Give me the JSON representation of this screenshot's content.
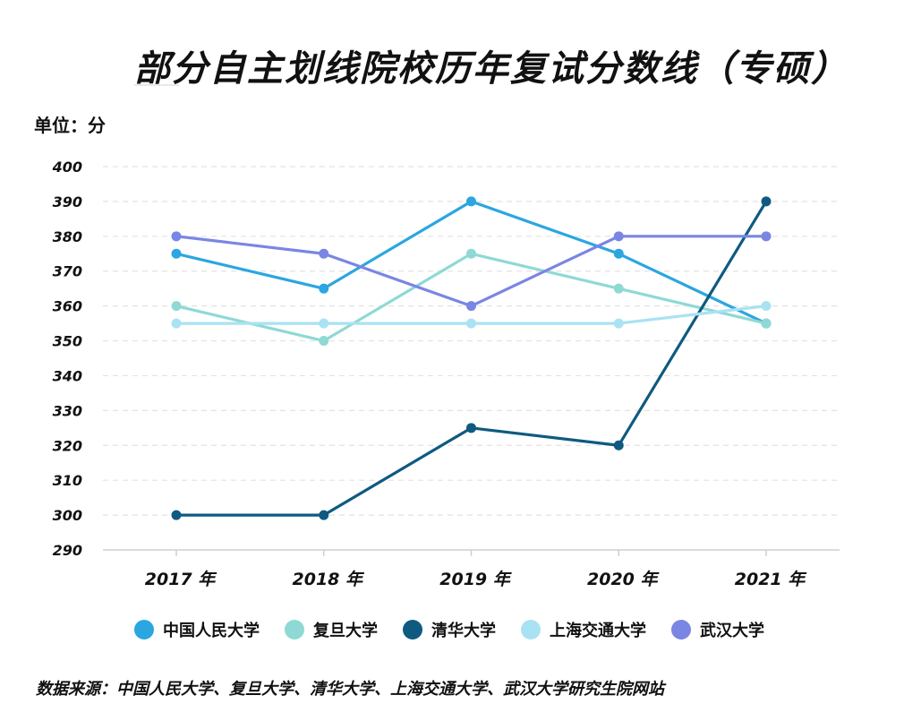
{
  "title": "部分自主划线院校历年复试分数线（专硕）",
  "unit_label": "单位：分",
  "source": "数据来源：中国人民大学、复旦大学、清华大学、上海交通大学、武汉大学研究生院网站",
  "chart_data": {
    "type": "line",
    "title": "部分自主划线院校历年复试分数线（专硕）",
    "ylabel": "单位：分",
    "xlabel": "",
    "x": [
      "2017 年",
      "2018 年",
      "2019 年",
      "2020 年",
      "2021 年"
    ],
    "ylim": [
      290,
      400
    ],
    "yticks": [
      400,
      390,
      380,
      370,
      360,
      350,
      340,
      330,
      320,
      310,
      300,
      290
    ],
    "grid": "horizontal-dashed",
    "legend": "bottom",
    "series": [
      {
        "name": "中国人民大学",
        "color": "#2ba6e0",
        "values": [
          375,
          365,
          390,
          375,
          355
        ]
      },
      {
        "name": "复旦大学",
        "color": "#8fd9d4",
        "values": [
          360,
          350,
          375,
          365,
          355
        ]
      },
      {
        "name": "清华大学",
        "color": "#0f5a80",
        "values": [
          300,
          300,
          325,
          320,
          390
        ]
      },
      {
        "name": "上海交通大学",
        "color": "#a9e2f3",
        "values": [
          355,
          355,
          355,
          355,
          360
        ]
      },
      {
        "name": "武汉大学",
        "color": "#7a86e3",
        "values": [
          380,
          375,
          360,
          380,
          380
        ]
      }
    ]
  }
}
